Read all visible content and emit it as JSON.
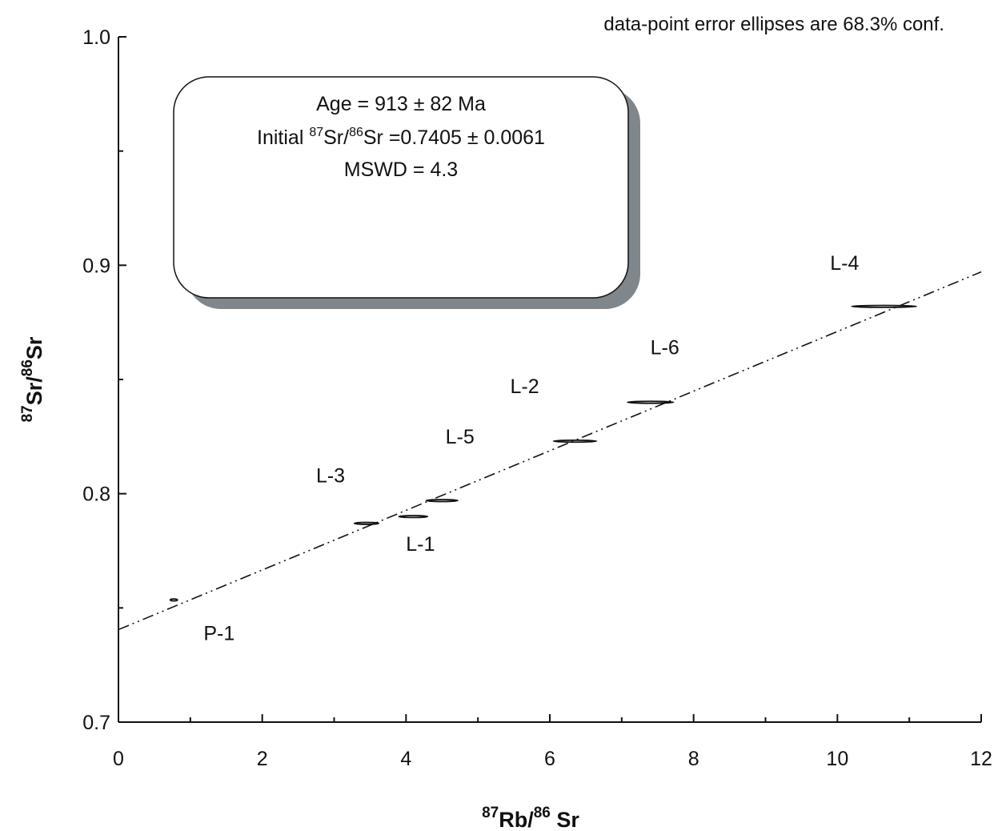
{
  "chart_data": {
    "type": "scatter",
    "note": "data-point error ellipses are 68.3% conf.",
    "xlabel": {
      "pre_sup": "87",
      "base": "Rb/",
      "mid_sup": "86",
      "tail": " Sr"
    },
    "ylabel": {
      "sup1": "87",
      "base1": "Sr/",
      "sup2": "86",
      "base2": "Sr"
    },
    "xlim": [
      0,
      12
    ],
    "ylim": [
      0.7,
      1.0
    ],
    "x_ticks": [
      0,
      2,
      4,
      6,
      8,
      10,
      12
    ],
    "x_tick_labels": [
      "0",
      "2",
      "4",
      "6",
      "8",
      "10",
      "12"
    ],
    "x_minor_ticks": [
      1,
      3,
      5,
      7,
      9,
      11
    ],
    "y_ticks": [
      0.7,
      0.8,
      0.9,
      1.0
    ],
    "y_tick_labels": [
      "0.7",
      "0.8",
      "0.9",
      "1.0"
    ],
    "y_minor_ticks": [
      0.75,
      0.85,
      0.95
    ],
    "grid": false,
    "result_box": {
      "line1": "Age = 913 ± 82 Ma",
      "line2_pre": "Initial ",
      "line2_sup1": "87",
      "line2_mid": "Sr/",
      "line2_sup2": "86",
      "line2_post": "Sr =0.7405 ± 0.0061",
      "line3": "MSWD = 4.3"
    },
    "isochron": {
      "intercept": 0.7405,
      "slope": 0.01305,
      "x_range": [
        0,
        12
      ]
    },
    "points": [
      {
        "label": "P-1",
        "x": 0.77,
        "y": 0.7535,
        "x_err": 0.05
      },
      {
        "label": "L-3",
        "x": 3.45,
        "y": 0.787,
        "x_err": 0.17
      },
      {
        "label": "L-1",
        "x": 4.1,
        "y": 0.79,
        "x_err": 0.2
      },
      {
        "label": "L-5",
        "x": 4.5,
        "y": 0.797,
        "x_err": 0.22
      },
      {
        "label": "L-2",
        "x": 6.35,
        "y": 0.823,
        "x_err": 0.3
      },
      {
        "label": "L-6",
        "x": 7.4,
        "y": 0.84,
        "x_err": 0.32
      },
      {
        "label": "L-4",
        "x": 10.65,
        "y": 0.882,
        "x_err": 0.45
      }
    ],
    "point_labels": [
      {
        "text": "P-1",
        "x": 1.4,
        "y": 0.736
      },
      {
        "text": "L-3",
        "x": 2.95,
        "y": 0.805
      },
      {
        "text": "L-1",
        "x": 4.2,
        "y": 0.775
      },
      {
        "text": "L-5",
        "x": 4.75,
        "y": 0.822
      },
      {
        "text": "L-2",
        "x": 5.65,
        "y": 0.844
      },
      {
        "text": "L-6",
        "x": 7.6,
        "y": 0.861
      },
      {
        "text": "L-4",
        "x": 10.1,
        "y": 0.898
      }
    ],
    "colors": {
      "axis": "#111111",
      "line": "#111111",
      "box_shadow": "#7f868c",
      "box_fill": "#ffffff"
    }
  }
}
